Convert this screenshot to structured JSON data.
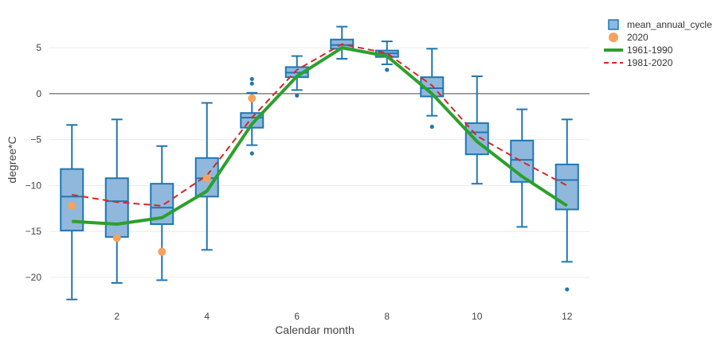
{
  "chart_data": {
    "type": "box",
    "xlabel": "Calendar month",
    "ylabel": "degree*C",
    "xlim": [
      0.5,
      12.5
    ],
    "ylim": [
      -23.2,
      8.3
    ],
    "x_ticks": [
      2,
      4,
      6,
      8,
      10,
      12
    ],
    "y_ticks": [
      -20,
      -15,
      -10,
      -5,
      0,
      5
    ],
    "zero_line": true,
    "grid": "horizontal",
    "legend_position": "top-right",
    "colors": {
      "box_fill": "#8fb8dc",
      "box_line": "#1f77b4",
      "scatter_2020": "#f5a25d",
      "line_1961_1990": "#2ca02c",
      "line_1981_2020": "#d62728",
      "grid": "#ececec",
      "zero_line": "#444444"
    },
    "series": [
      {
        "name": "mean_annual_cycle",
        "type": "box",
        "boxes": [
          {
            "x": 1,
            "lower_fence": -22.4,
            "q1": -14.9,
            "median": -11.2,
            "q3": -8.2,
            "upper_fence": -3.4,
            "outliers": []
          },
          {
            "x": 2,
            "lower_fence": -20.6,
            "q1": -15.6,
            "median": -11.7,
            "q3": -9.2,
            "upper_fence": -2.8,
            "outliers": []
          },
          {
            "x": 3,
            "lower_fence": -20.3,
            "q1": -14.2,
            "median": -12.4,
            "q3": -9.8,
            "upper_fence": -5.7,
            "outliers": []
          },
          {
            "x": 4,
            "lower_fence": -17.0,
            "q1": -11.2,
            "median": -9.2,
            "q3": -7.0,
            "upper_fence": -1.0,
            "outliers": []
          },
          {
            "x": 5,
            "lower_fence": -5.6,
            "q1": -3.7,
            "median": -2.6,
            "q3": -2.1,
            "upper_fence": 0.1,
            "outliers": [
              1.6,
              1.1,
              -6.5
            ]
          },
          {
            "x": 6,
            "lower_fence": 0.4,
            "q1": 1.8,
            "median": 2.3,
            "q3": 2.9,
            "upper_fence": 4.1,
            "outliers": [
              -0.2
            ]
          },
          {
            "x": 7,
            "lower_fence": 3.8,
            "q1": 4.9,
            "median": 5.3,
            "q3": 5.9,
            "upper_fence": 7.3,
            "outliers": []
          },
          {
            "x": 8,
            "lower_fence": 3.2,
            "q1": 4.0,
            "median": 4.4,
            "q3": 4.7,
            "upper_fence": 5.7,
            "outliers": [
              2.6
            ]
          },
          {
            "x": 9,
            "lower_fence": -2.4,
            "q1": -0.3,
            "median": 0.6,
            "q3": 1.8,
            "upper_fence": 4.9,
            "outliers": [
              -3.6
            ]
          },
          {
            "x": 10,
            "lower_fence": -9.8,
            "q1": -6.6,
            "median": -4.2,
            "q3": -3.2,
            "upper_fence": 1.9,
            "outliers": []
          },
          {
            "x": 11,
            "lower_fence": -14.5,
            "q1": -9.6,
            "median": -7.2,
            "q3": -5.1,
            "upper_fence": -1.7,
            "outliers": []
          },
          {
            "x": 12,
            "lower_fence": -18.3,
            "q1": -12.6,
            "median": -9.4,
            "q3": -7.7,
            "upper_fence": -2.8,
            "outliers": [
              -21.3
            ]
          }
        ]
      },
      {
        "name": "2020",
        "type": "scatter",
        "x": [
          1,
          2,
          3,
          4,
          5
        ],
        "y": [
          -12.2,
          -15.7,
          -17.2,
          -9.2,
          -0.5
        ]
      },
      {
        "name": "1961-1990",
        "type": "line",
        "x": [
          1,
          2,
          3,
          4,
          5,
          6,
          7,
          8,
          9,
          10,
          11,
          12
        ],
        "y": [
          -13.9,
          -14.2,
          -13.5,
          -10.6,
          -3.3,
          1.9,
          5.0,
          4.1,
          0.0,
          -5.2,
          -9.0,
          -12.2
        ]
      },
      {
        "name": "1981-2020",
        "type": "line",
        "dash": "dash",
        "x": [
          1,
          2,
          3,
          4,
          5,
          6,
          7,
          8,
          9,
          10,
          11,
          12
        ],
        "y": [
          -11.0,
          -11.8,
          -12.2,
          -8.9,
          -2.6,
          2.6,
          5.4,
          4.4,
          0.9,
          -4.6,
          -7.4,
          -10.0
        ]
      }
    ]
  }
}
